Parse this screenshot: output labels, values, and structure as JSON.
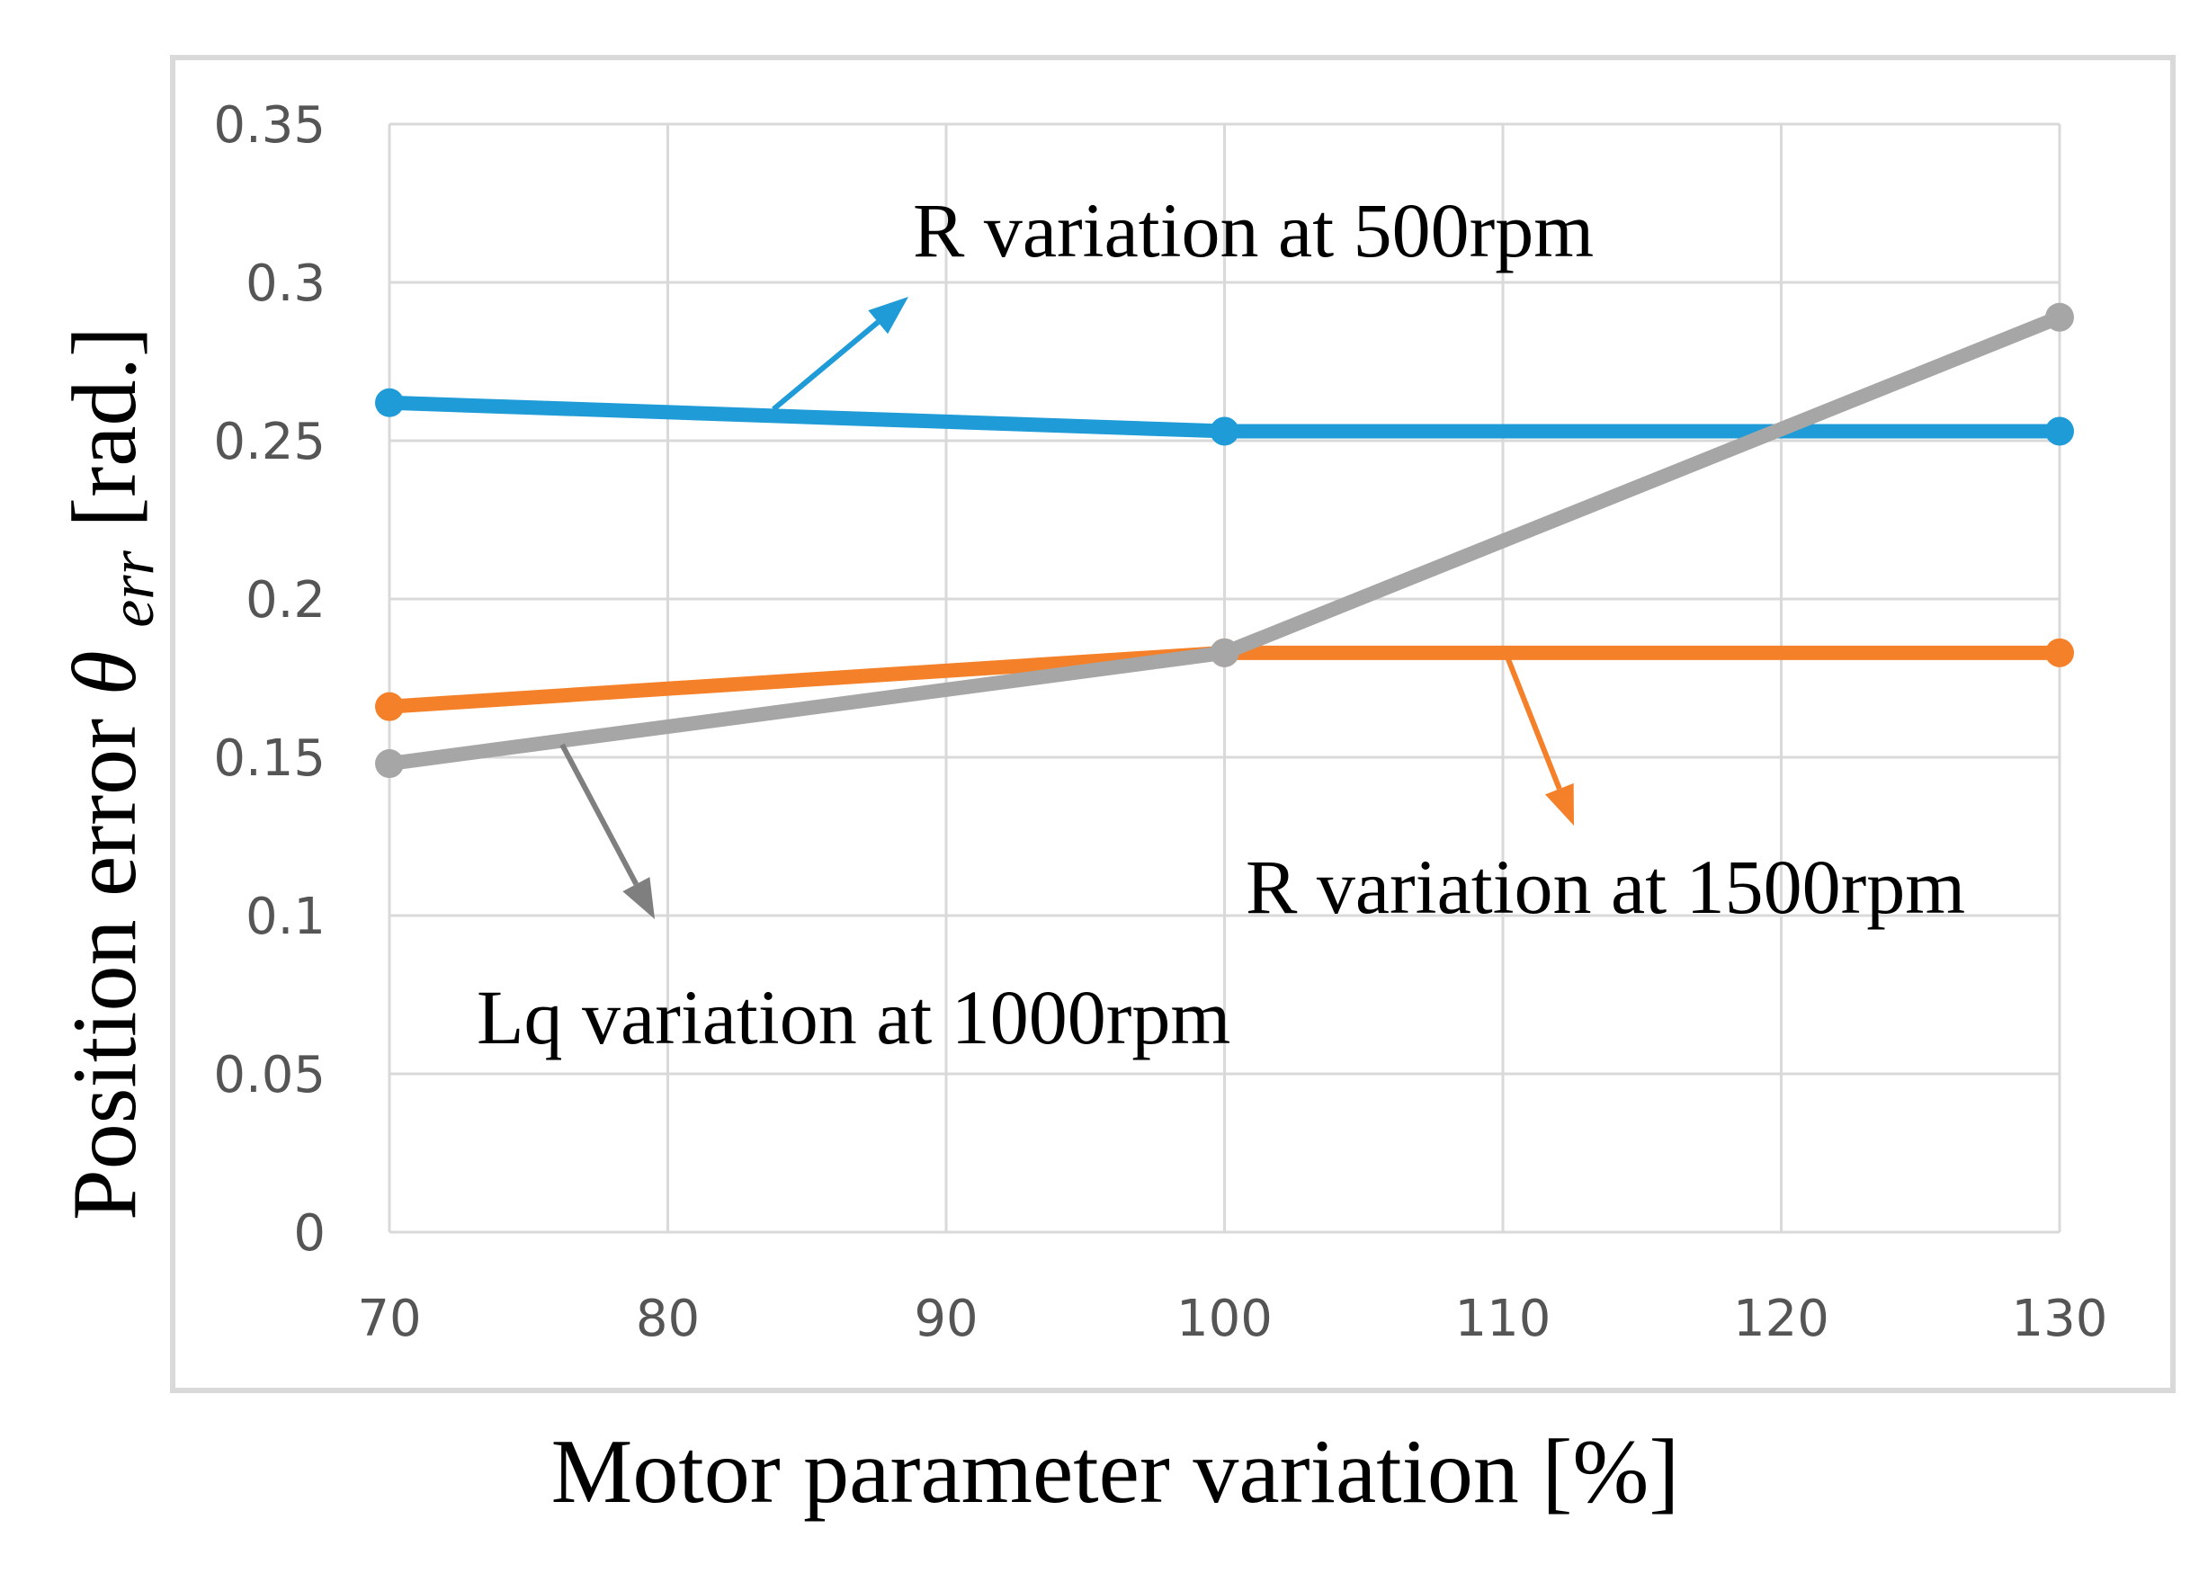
{
  "chart_data": {
    "type": "line",
    "xlabel": "Motor parameter variation [%]",
    "ylabel": {
      "prefix": "Position error ",
      "symbol": "θ",
      "subscript": "err",
      "suffix": " [rad.]"
    },
    "x": [
      70,
      100,
      130
    ],
    "xticks": [
      "70",
      "80",
      "90",
      "100",
      "110",
      "120",
      "130"
    ],
    "xlim": [
      70,
      130
    ],
    "yticks": [
      "0",
      "0.05",
      "0.1",
      "0.15",
      "0.2",
      "0.25",
      "0.3",
      "0.35"
    ],
    "ylim": [
      0,
      0.35
    ],
    "grid": true,
    "series": [
      {
        "name": "R variation at 500rpm",
        "color": "#1f9bd7",
        "values": [
          0.262,
          0.253,
          0.253
        ]
      },
      {
        "name": "R variation at 1500rpm",
        "color": "#f5802a",
        "values": [
          0.166,
          0.183,
          0.183
        ]
      },
      {
        "name": "Lq variation at 1000rpm",
        "color": "#a6a6a6",
        "values": [
          0.148,
          0.183,
          0.289
        ]
      }
    ],
    "annotations": [
      {
        "text": "R variation at 500rpm",
        "series": 0,
        "arrow_color": "#1f9bd7"
      },
      {
        "text": "R variation at 1500rpm",
        "series": 1,
        "arrow_color": "#f5802a"
      },
      {
        "text": "Lq variation at 1000rpm",
        "series": 2,
        "arrow_color": "#7f7f7f"
      }
    ]
  }
}
